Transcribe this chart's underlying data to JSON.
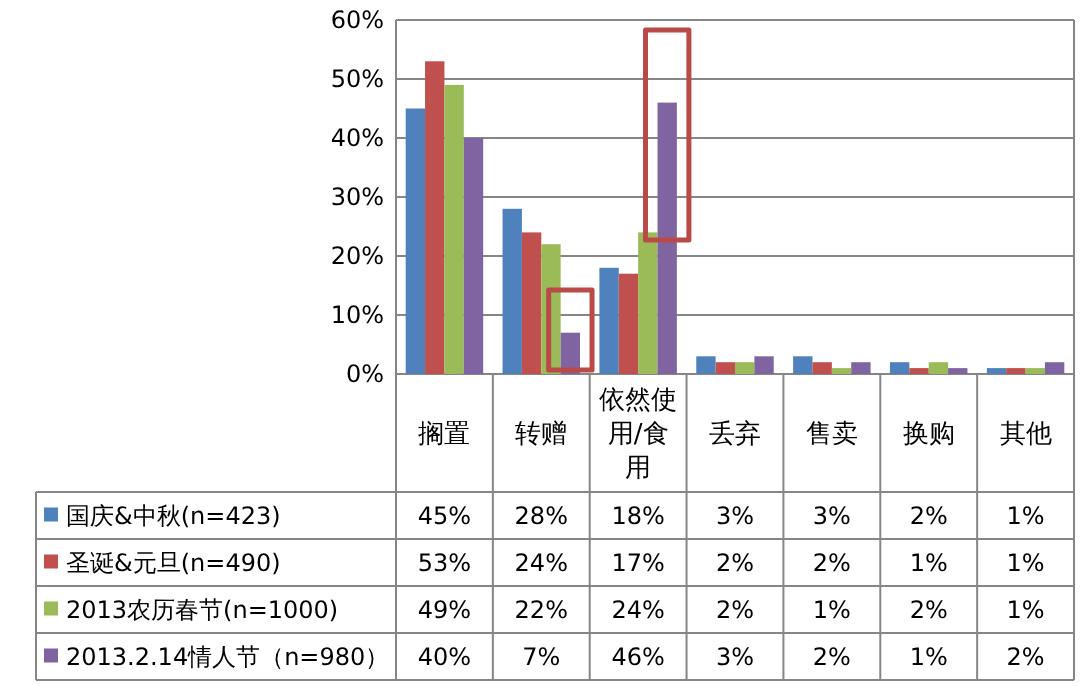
{
  "chart_data": {
    "type": "bar",
    "categories": [
      "搁置",
      "转赠",
      "依然使用/食用",
      "丢弃",
      "售卖",
      "换购",
      "其他"
    ],
    "series": [
      {
        "name": "国庆&中秋(n=423)",
        "color": "#4f81bd",
        "values": [
          45,
          28,
          18,
          3,
          3,
          2,
          1
        ],
        "value_labels": [
          "45%",
          "28%",
          "18%",
          "3%",
          "3%",
          "2%",
          "1%"
        ]
      },
      {
        "name": "圣诞&元旦(n=490)",
        "color": "#c0504d",
        "values": [
          53,
          24,
          17,
          2,
          2,
          1,
          1
        ],
        "value_labels": [
          "53%",
          "24%",
          "17%",
          "2%",
          "2%",
          "1%",
          "1%"
        ]
      },
      {
        "name": "2013农历春节(n=1000)",
        "color": "#9bbb59",
        "values": [
          49,
          22,
          24,
          2,
          1,
          2,
          1
        ],
        "value_labels": [
          "49%",
          "22%",
          "24%",
          "2%",
          "1%",
          "2%",
          "1%"
        ]
      },
      {
        "name": "2013.2.14情人节（n=980）",
        "color": "#8064a2",
        "values": [
          40,
          7,
          46,
          3,
          2,
          1,
          2
        ],
        "value_labels": [
          "40%",
          "7%",
          "46%",
          "3%",
          "2%",
          "1%",
          "2%"
        ]
      }
    ],
    "ylim": [
      0,
      60
    ],
    "yticks": [
      {
        "value": 0,
        "label": "0%"
      },
      {
        "value": 10,
        "label": "10%"
      },
      {
        "value": 20,
        "label": "20%"
      },
      {
        "value": 30,
        "label": "30%"
      },
      {
        "value": 40,
        "label": "40%"
      },
      {
        "value": 50,
        "label": "50%"
      },
      {
        "value": 60,
        "label": "60%"
      }
    ],
    "grid": "y",
    "legend": "bottom"
  }
}
